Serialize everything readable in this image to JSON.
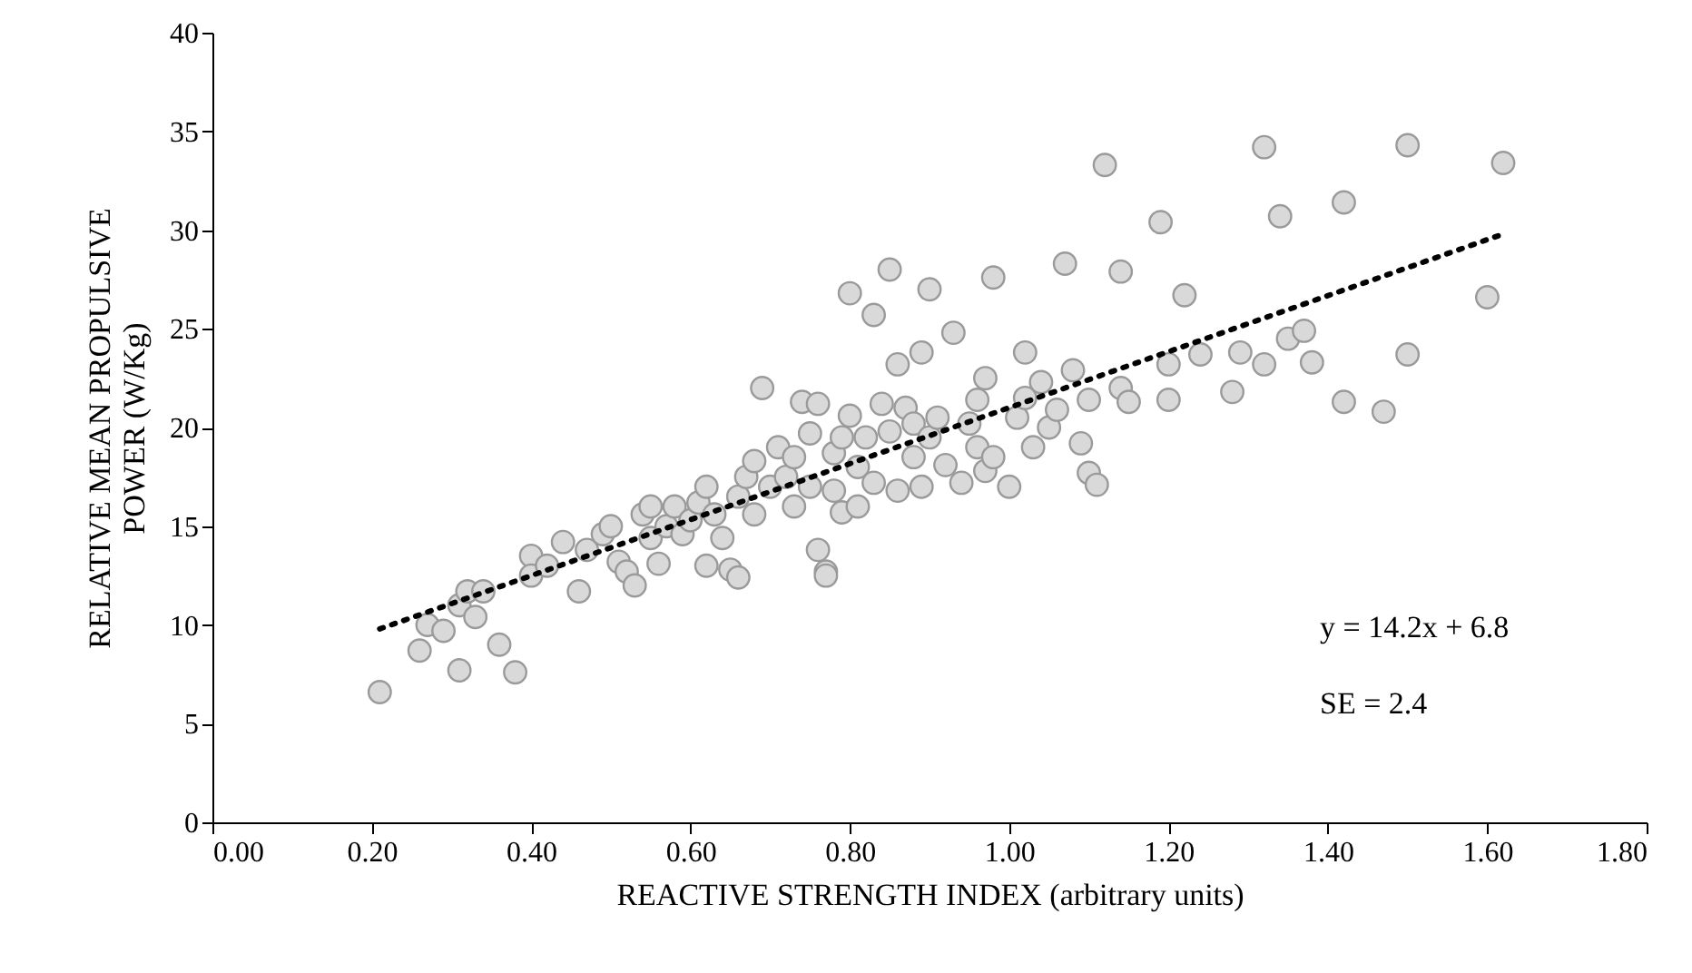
{
  "chart_data": {
    "type": "scatter",
    "xlabel": "REACTIVE STRENGTH INDEX (arbitrary units)",
    "ylabel": "RELATIVE MEAN PROPULSIVE POWER (W/Kg)",
    "xlim": [
      0,
      1.8
    ],
    "xticks": [
      {
        "value": 0,
        "label": "0.00"
      },
      {
        "value": 0.2,
        "label": "0.20"
      },
      {
        "value": 0.4,
        "label": "0.40"
      },
      {
        "value": 0.6,
        "label": "0.60"
      },
      {
        "value": 0.8,
        "label": "0.80"
      },
      {
        "value": 1,
        "label": "1.00"
      },
      {
        "value": 1.2,
        "label": "1.20"
      },
      {
        "value": 1.4,
        "label": "1.40"
      },
      {
        "value": 1.6,
        "label": "1.60"
      },
      {
        "value": 1.8,
        "label": "1.80"
      }
    ],
    "ylim": [
      0,
      40
    ],
    "yticks": [
      0,
      5,
      10,
      15,
      20,
      25,
      30,
      35,
      40
    ],
    "grid": false,
    "marker": "circle",
    "annotations": [
      "y = 14.2x + 6.8",
      "SE = 2.4"
    ],
    "series": [
      {
        "color": "#d9d9d9",
        "x": [
          0.21,
          0.26,
          0.27,
          0.29,
          0.31,
          0.31,
          0.32,
          0.33,
          0.34,
          0.36,
          0.38,
          0.4,
          0.4,
          0.42,
          0.44,
          0.46,
          0.47,
          0.49,
          0.5,
          0.51,
          0.52,
          0.53,
          0.54,
          0.55,
          0.55,
          0.56,
          0.57,
          0.58,
          0.59,
          0.6,
          0.61,
          0.62,
          0.62,
          0.63,
          0.64,
          0.65,
          0.66,
          0.66,
          0.67,
          0.68,
          0.68,
          0.69,
          0.7,
          0.71,
          0.72,
          0.73,
          0.73,
          0.74,
          0.75,
          0.75,
          0.76,
          0.76,
          0.77,
          0.77,
          0.78,
          0.78,
          0.79,
          0.79,
          0.8,
          0.8,
          0.81,
          0.81,
          0.82,
          0.83,
          0.83,
          0.84,
          0.85,
          0.85,
          0.86,
          0.86,
          0.87,
          0.88,
          0.88,
          0.89,
          0.89,
          0.9,
          0.9,
          0.91,
          0.92,
          0.93,
          0.94,
          0.95,
          0.96,
          0.96,
          0.97,
          0.97,
          0.98,
          0.98,
          1.0,
          1.01,
          1.02,
          1.02,
          1.03,
          1.04,
          1.05,
          1.06,
          1.07,
          1.08,
          1.09,
          1.1,
          1.1,
          1.11,
          1.12,
          1.14,
          1.14,
          1.15,
          1.19,
          1.2,
          1.2,
          1.22,
          1.24,
          1.28,
          1.29,
          1.32,
          1.32,
          1.34,
          1.35,
          1.37,
          1.38,
          1.42,
          1.42,
          1.47,
          1.5,
          1.5,
          1.6,
          1.62
        ],
        "values": [
          6.6,
          8.7,
          10.0,
          9.7,
          7.7,
          11.0,
          11.7,
          10.4,
          11.7,
          9.0,
          7.6,
          13.5,
          12.5,
          13.0,
          14.2,
          11.7,
          13.8,
          14.6,
          15.0,
          13.2,
          12.7,
          12.0,
          15.6,
          14.4,
          16.0,
          13.1,
          15.0,
          16.0,
          14.6,
          15.3,
          16.2,
          13.0,
          17.0,
          15.6,
          14.4,
          12.8,
          12.4,
          16.5,
          17.5,
          18.3,
          15.6,
          22.0,
          17.0,
          19.0,
          17.5,
          16.0,
          18.5,
          21.3,
          17.0,
          19.7,
          21.2,
          13.8,
          12.7,
          12.5,
          16.8,
          18.7,
          19.5,
          15.7,
          20.6,
          26.8,
          16.0,
          18.0,
          19.5,
          17.2,
          25.7,
          21.2,
          19.8,
          28.0,
          16.8,
          23.2,
          21.0,
          18.5,
          20.2,
          17.0,
          23.8,
          27.0,
          19.5,
          20.5,
          18.1,
          24.8,
          17.2,
          20.2,
          19.0,
          21.4,
          22.5,
          17.8,
          27.6,
          18.5,
          17.0,
          20.5,
          23.8,
          21.5,
          19.0,
          22.3,
          20.0,
          20.9,
          28.3,
          22.9,
          19.2,
          21.4,
          17.7,
          17.1,
          33.3,
          27.9,
          22.0,
          21.3,
          30.4,
          23.2,
          21.4,
          26.7,
          23.7,
          21.8,
          23.8,
          23.2,
          34.2,
          30.7,
          24.5,
          24.9,
          23.3,
          31.4,
          21.3,
          20.8,
          34.3,
          23.7,
          26.6,
          33.4
        ]
      },
      {
        "type": "line",
        "color": "#000000",
        "line_style": "dotted",
        "marker": "none",
        "x": [
          0.21,
          1.62
        ],
        "values": [
          9.8,
          29.8
        ]
      }
    ]
  }
}
